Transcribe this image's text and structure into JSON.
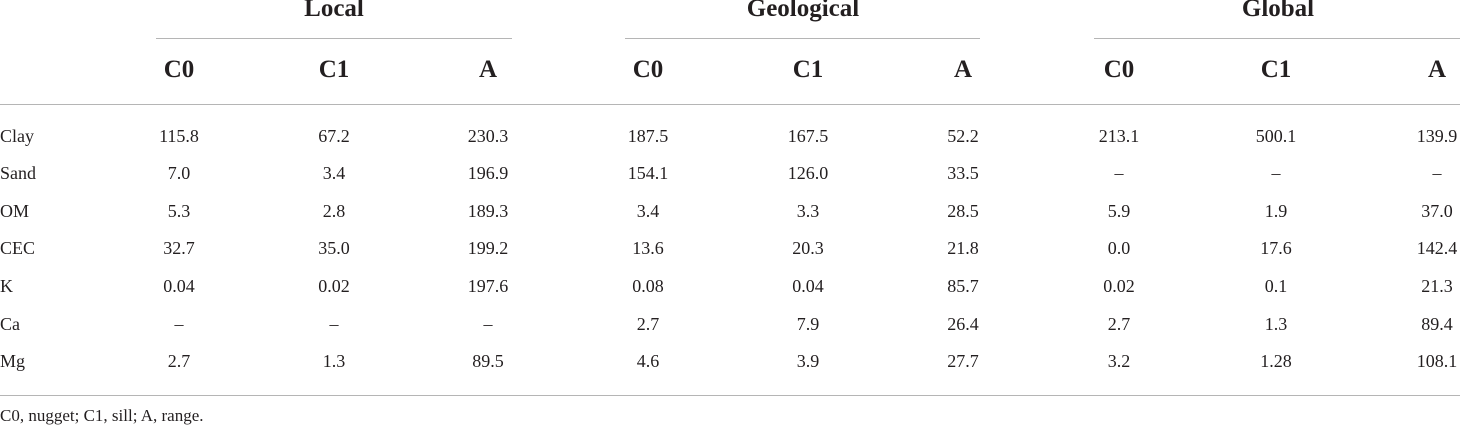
{
  "table": {
    "groups": [
      "Local",
      "Geological",
      "Global"
    ],
    "columns": [
      "C0",
      "C1",
      "A",
      "C0",
      "C1",
      "A",
      "C0",
      "C1",
      "A"
    ],
    "rows": [
      {
        "label": "Clay",
        "values": [
          "115.8",
          "67.2",
          "230.3",
          "187.5",
          "167.5",
          "52.2",
          "213.1",
          "500.1",
          "139.9"
        ]
      },
      {
        "label": "Sand",
        "values": [
          "7.0",
          "3.4",
          "196.9",
          "154.1",
          "126.0",
          "33.5",
          "–",
          "–",
          "–"
        ]
      },
      {
        "label": "OM",
        "values": [
          "5.3",
          "2.8",
          "189.3",
          "3.4",
          "3.3",
          "28.5",
          "5.9",
          "1.9",
          "37.0"
        ]
      },
      {
        "label": "CEC",
        "values": [
          "32.7",
          "35.0",
          "199.2",
          "13.6",
          "20.3",
          "21.8",
          "0.0",
          "17.6",
          "142.4"
        ]
      },
      {
        "label": "K",
        "values": [
          "0.04",
          "0.02",
          "197.6",
          "0.08",
          "0.04",
          "85.7",
          "0.02",
          "0.1",
          "21.3"
        ]
      },
      {
        "label": "Ca",
        "values": [
          "–",
          "–",
          "–",
          "2.7",
          "7.9",
          "26.4",
          "2.7",
          "1.3",
          "89.4"
        ]
      },
      {
        "label": "Mg",
        "values": [
          "2.7",
          "1.3",
          "89.5",
          "4.6",
          "3.9",
          "27.7",
          "3.2",
          "1.28",
          "108.1"
        ]
      }
    ],
    "footnote": "C0, nugget; C1, sill; A, range."
  }
}
